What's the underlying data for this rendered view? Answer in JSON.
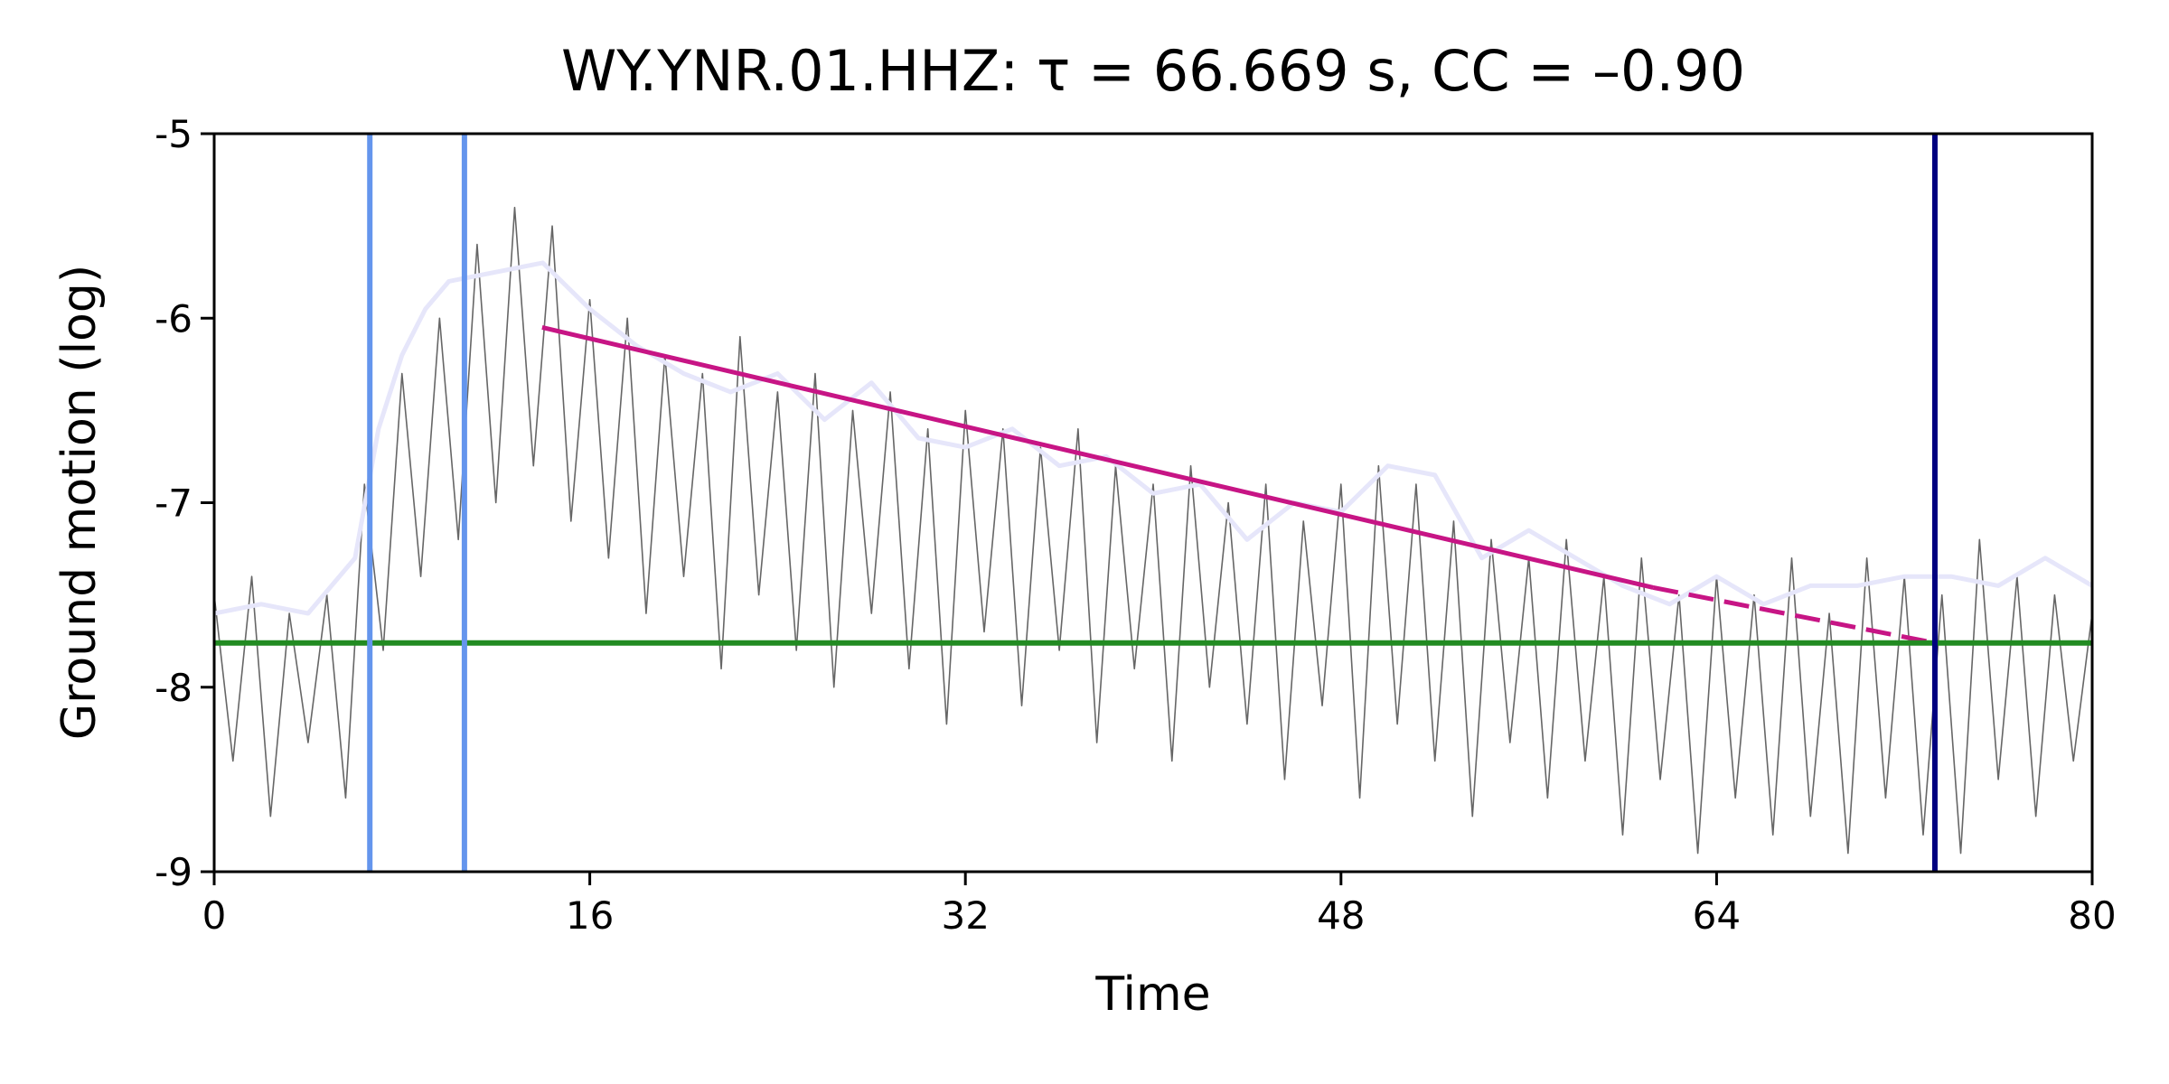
{
  "chart_data": {
    "type": "line",
    "title": "WY.YNR.01.HHZ: τ = 66.669 s, CC = –0.90",
    "xlabel": "Time",
    "ylabel": "Ground motion (log)",
    "xlim": [
      0,
      80
    ],
    "ylim": [
      -9,
      -5
    ],
    "xticks": [
      0,
      16,
      32,
      48,
      64,
      80
    ],
    "yticks": [
      -5,
      -6,
      -7,
      -8,
      -9
    ],
    "grid": false,
    "series": [
      {
        "color": "#666666",
        "width": 1.6,
        "style": "solid",
        "x": [
          0,
          0.8,
          1.6,
          2.4,
          3.2,
          4.0,
          4.8,
          5.6,
          6.4,
          7.2,
          8.0,
          8.8,
          9.6,
          10.4,
          11.2,
          12.0,
          12.8,
          13.6,
          14.4,
          15.2,
          16.0,
          16.8,
          17.6,
          18.4,
          19.2,
          20.0,
          20.8,
          21.6,
          22.4,
          23.2,
          24.0,
          24.8,
          25.6,
          26.4,
          27.2,
          28.0,
          28.8,
          29.6,
          30.4,
          31.2,
          32.0,
          32.8,
          33.6,
          34.4,
          35.2,
          36.0,
          36.8,
          37.6,
          38.4,
          39.2,
          40.0,
          40.8,
          41.6,
          42.4,
          43.2,
          44.0,
          44.8,
          45.6,
          46.4,
          47.2,
          48.0,
          48.8,
          49.6,
          50.4,
          51.2,
          52.0,
          52.8,
          53.6,
          54.4,
          55.2,
          56.0,
          56.8,
          57.6,
          58.4,
          59.2,
          60.0,
          60.8,
          61.6,
          62.4,
          63.2,
          64.0,
          64.8,
          65.6,
          66.4,
          67.2,
          68.0,
          68.8,
          69.6,
          70.4,
          71.2,
          72.0,
          72.8,
          73.6,
          74.4,
          75.2,
          76.0,
          76.8,
          77.6,
          78.4,
          79.2,
          80.0
        ],
        "values": [
          -7.5,
          -8.4,
          -7.4,
          -8.7,
          -7.6,
          -8.3,
          -7.5,
          -8.6,
          -6.9,
          -7.8,
          -6.3,
          -7.4,
          -6.0,
          -7.2,
          -5.6,
          -7.0,
          -5.4,
          -6.8,
          -5.5,
          -7.1,
          -5.9,
          -7.3,
          -6.0,
          -7.6,
          -6.2,
          -7.4,
          -6.3,
          -7.9,
          -6.1,
          -7.5,
          -6.4,
          -7.8,
          -6.3,
          -8.0,
          -6.5,
          -7.6,
          -6.4,
          -7.9,
          -6.6,
          -8.2,
          -6.5,
          -7.7,
          -6.6,
          -8.1,
          -6.7,
          -7.8,
          -6.6,
          -8.3,
          -6.8,
          -7.9,
          -6.9,
          -8.4,
          -6.8,
          -8.0,
          -7.0,
          -8.2,
          -6.9,
          -8.5,
          -7.1,
          -8.1,
          -6.9,
          -8.6,
          -6.8,
          -8.2,
          -6.9,
          -8.4,
          -7.1,
          -8.7,
          -7.2,
          -8.3,
          -7.3,
          -8.6,
          -7.2,
          -8.4,
          -7.4,
          -8.8,
          -7.3,
          -8.5,
          -7.5,
          -8.9,
          -7.4,
          -8.6,
          -7.5,
          -8.8,
          -7.3,
          -8.7,
          -7.6,
          -8.9,
          -7.3,
          -8.6,
          -7.4,
          -8.8,
          -7.5,
          -8.9,
          -7.2,
          -8.5,
          -7.4,
          -8.7,
          -7.5,
          -8.4,
          -7.6
        ]
      },
      {
        "color": "#e6e6fa",
        "width": 5,
        "style": "solid",
        "x": [
          0,
          2,
          4,
          6,
          7,
          8,
          9,
          10,
          12,
          14,
          16,
          18,
          20,
          22,
          24,
          26,
          28,
          30,
          32,
          34,
          36,
          38,
          40,
          42,
          44,
          46,
          48,
          50,
          52,
          54,
          56,
          58,
          60,
          62,
          64,
          66,
          68,
          70,
          72,
          74,
          76,
          78,
          80
        ],
        "values": [
          -7.6,
          -7.55,
          -7.6,
          -7.3,
          -6.6,
          -6.2,
          -5.95,
          -5.8,
          -5.75,
          -5.7,
          -5.95,
          -6.15,
          -6.3,
          -6.4,
          -6.3,
          -6.55,
          -6.35,
          -6.65,
          -6.7,
          -6.6,
          -6.8,
          -6.75,
          -6.95,
          -6.9,
          -7.2,
          -7.0,
          -7.05,
          -6.8,
          -6.85,
          -7.3,
          -7.15,
          -7.3,
          -7.45,
          -7.55,
          -7.4,
          -7.55,
          -7.45,
          -7.45,
          -7.4,
          -7.4,
          -7.45,
          -7.3,
          -7.45
        ]
      },
      {
        "color": "#c71585",
        "width": 5,
        "style": "solid",
        "x": [
          13.97,
          61.3
        ],
        "values": [
          -6.05,
          -7.46
        ]
      },
      {
        "color": "#c71585",
        "width": 5,
        "style": "dashed",
        "x": [
          61.3,
          73.3
        ],
        "values": [
          -7.46,
          -7.76
        ]
      }
    ],
    "vlines": [
      {
        "x": 6.63,
        "color": "#6495ed"
      },
      {
        "x": 10.66,
        "color": "#6495ed"
      },
      {
        "x": 73.3,
        "color": "#000080"
      }
    ],
    "hlines": [
      {
        "y": -7.76,
        "color": "#228b22"
      }
    ]
  }
}
